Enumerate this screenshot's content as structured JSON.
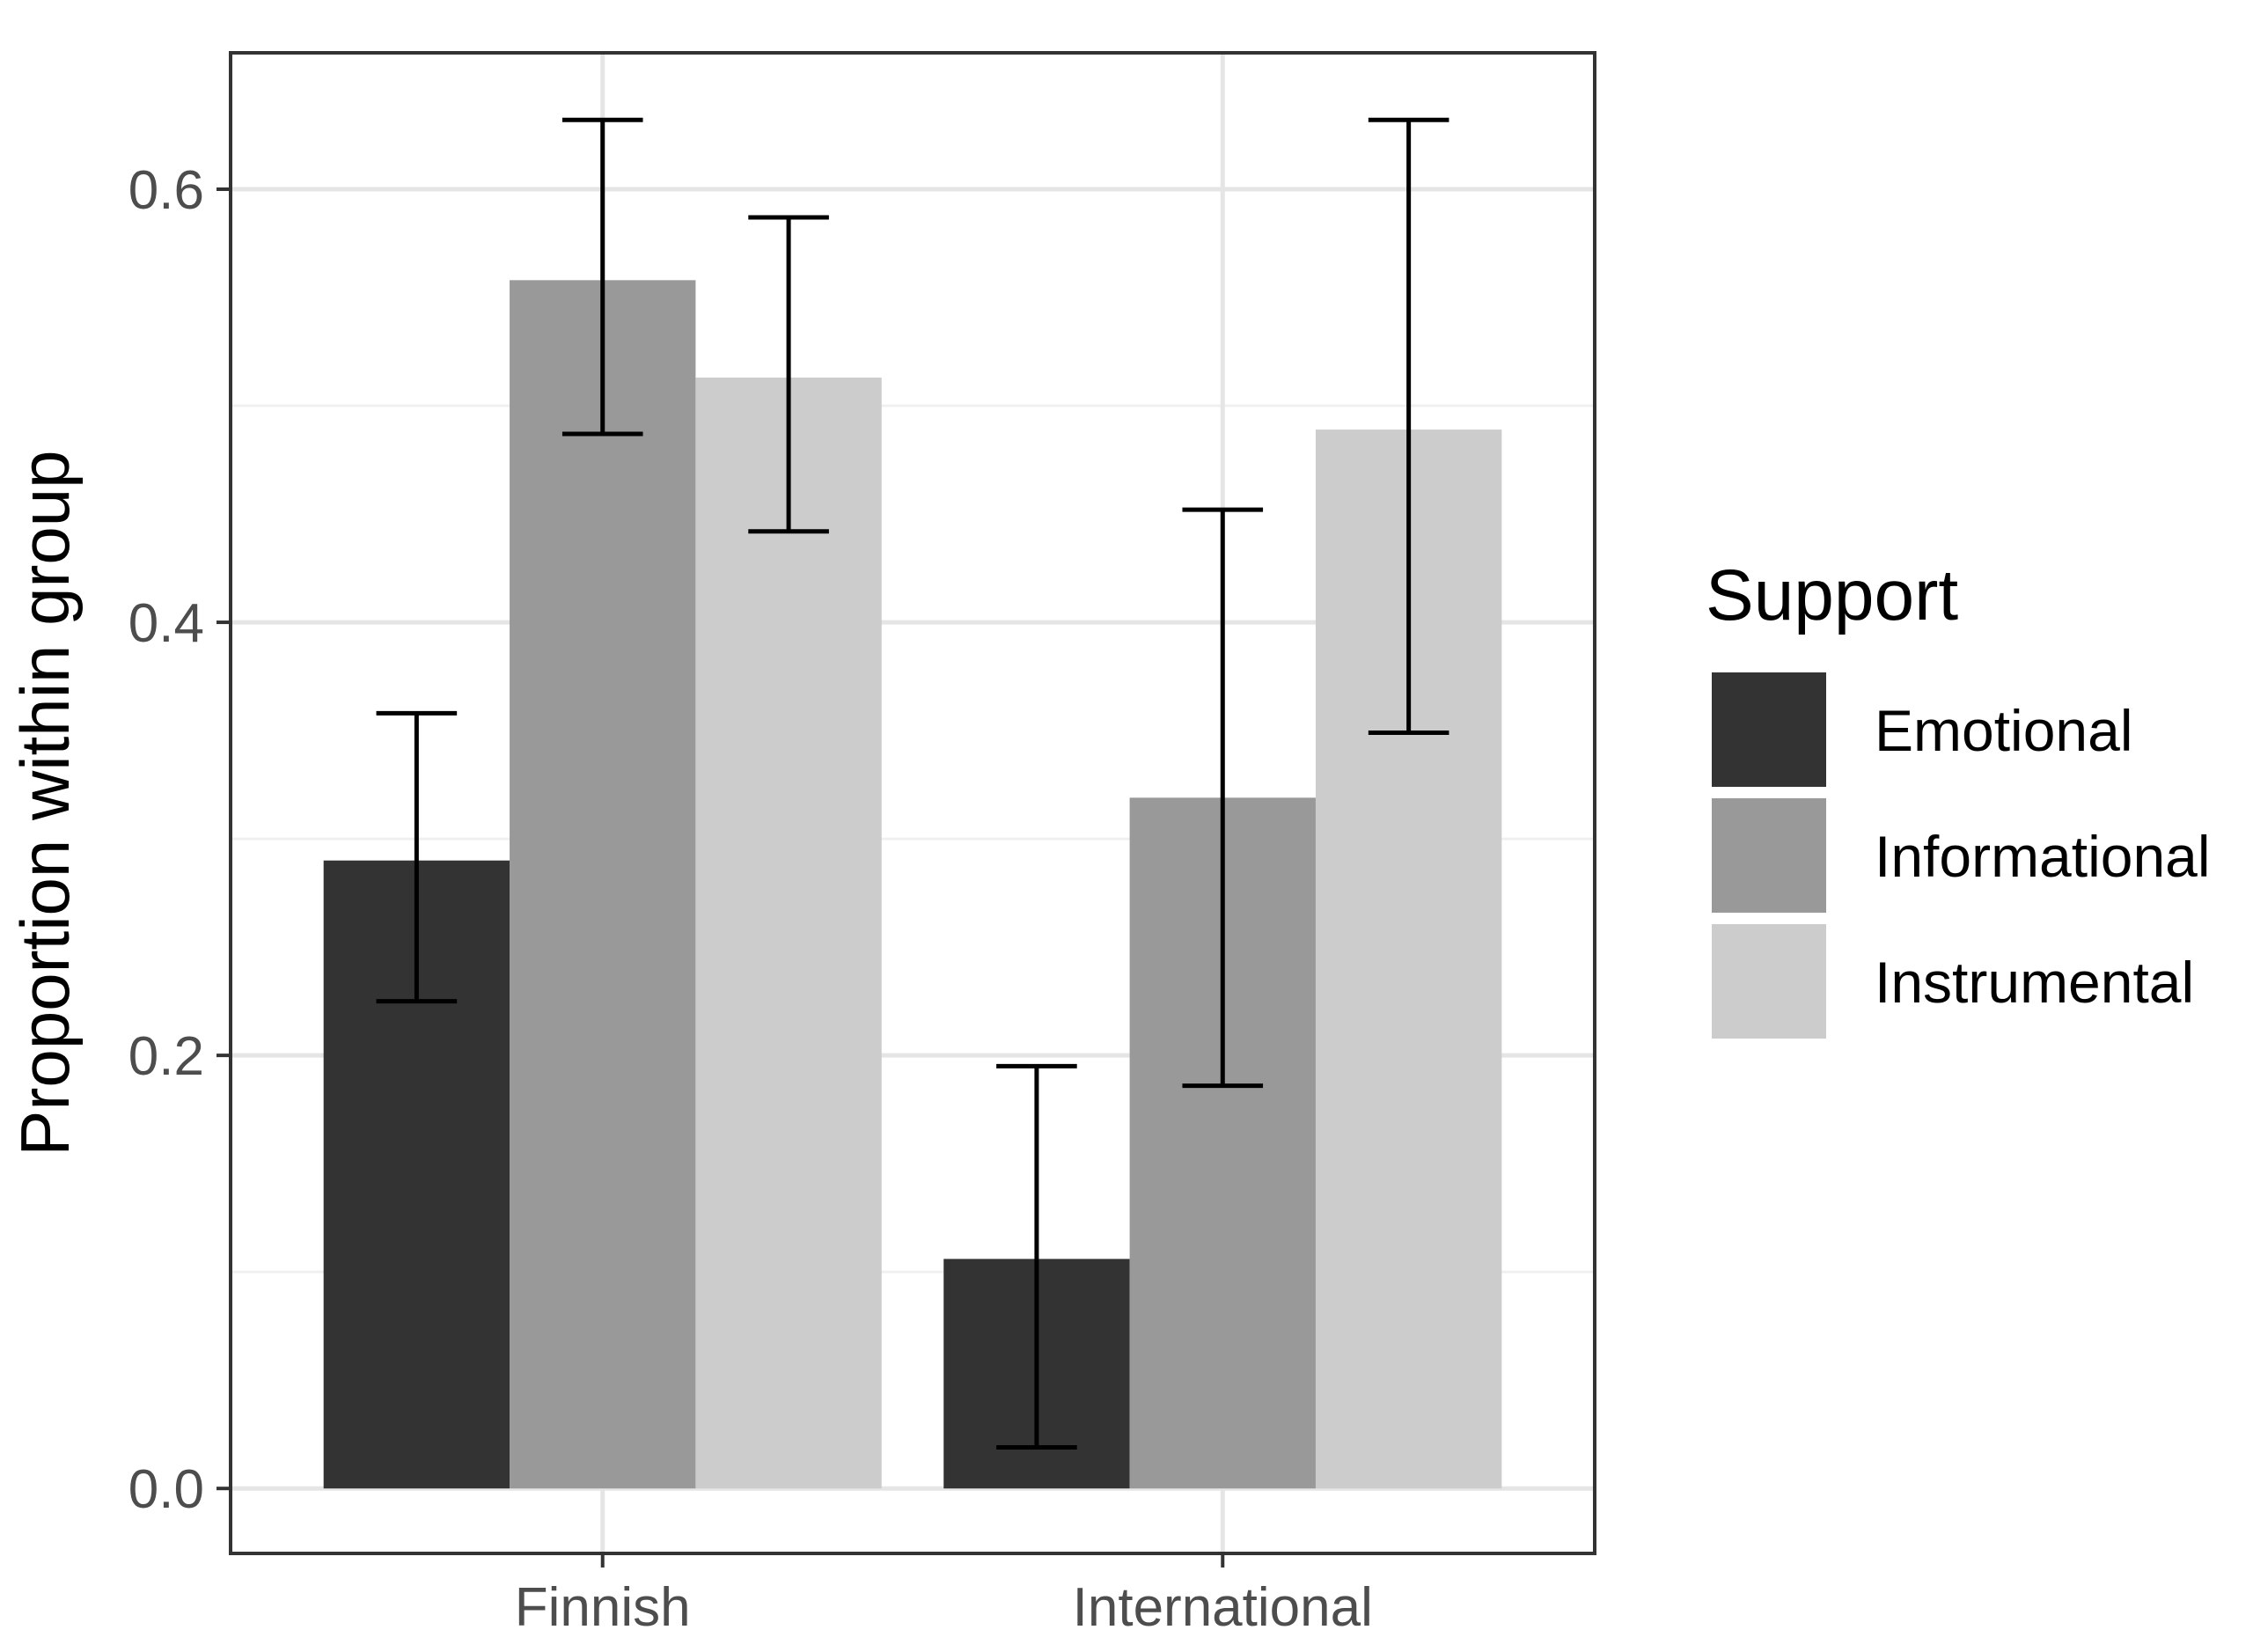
{
  "chart_data": {
    "type": "bar",
    "categories": [
      "Finnish",
      "International"
    ],
    "series": [
      {
        "name": "Emotional",
        "color": "#333333",
        "values": [
          0.29,
          0.106
        ],
        "error_low": [
          0.225,
          0.019
        ],
        "error_high": [
          0.358,
          0.195
        ]
      },
      {
        "name": "Informational",
        "color": "#999999",
        "values": [
          0.558,
          0.319
        ],
        "error_low": [
          0.487,
          0.186
        ],
        "error_high": [
          0.632,
          0.452
        ]
      },
      {
        "name": "Instrumental",
        "color": "#cccccc",
        "values": [
          0.513,
          0.489
        ],
        "error_low": [
          0.442,
          0.349
        ],
        "error_high": [
          0.587,
          0.632
        ]
      }
    ],
    "title": "",
    "xlabel": "",
    "ylabel": "Proportion within group",
    "ylim": [
      -0.03,
      0.663
    ],
    "y_ticks": [
      "0.0",
      "0.2",
      "0.4",
      "0.6"
    ],
    "y_tick_values": [
      0.0,
      0.2,
      0.4,
      0.6
    ],
    "y_minor_values": [
      0.1,
      0.3,
      0.5
    ],
    "grid": true,
    "legend": {
      "title": "Support",
      "position": "right"
    }
  }
}
